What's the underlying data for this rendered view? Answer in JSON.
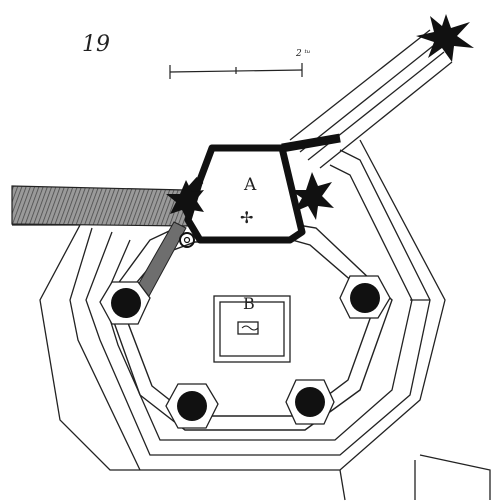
{
  "figure": {
    "number": "19",
    "scale_label": "2 ᵗᵘ",
    "room_a_label": "A",
    "room_b_label": "B",
    "cross_symbol": "✢"
  },
  "colors": {
    "ink": "#1c1c1c",
    "paper": "#ffffff",
    "shade": "#7a7a7a"
  },
  "icons": {
    "explosion_upper_right": "star-burst-icon",
    "explosion_left": "star-burst-icon",
    "explosion_right": "star-burst-icon",
    "ring_marker": "ring-icon",
    "cross_marker": "cross-icon"
  }
}
